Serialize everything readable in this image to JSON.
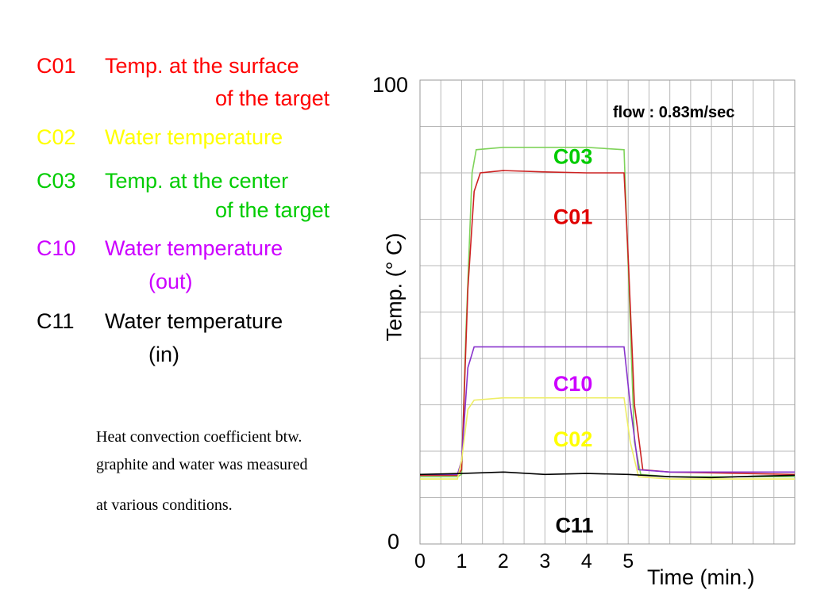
{
  "legend": [
    {
      "code": "C01",
      "desc": "Temp. at the surface",
      "cont": "of the target",
      "color": "#ff0000"
    },
    {
      "code": "C02",
      "desc": "Water temperature",
      "cont": "",
      "color": "#ffff00"
    },
    {
      "code": "C03",
      "desc": "Temp. at the center",
      "cont": "of the target",
      "color": "#00cc00"
    },
    {
      "code": "C10",
      "desc": "Water temperature",
      "cont": "(out)",
      "color": "#cc00ff"
    },
    {
      "code": "C11",
      "desc": "Water temperature",
      "cont": "(in)",
      "color": "#000000"
    }
  ],
  "note": {
    "line1": "Heat convection coefficient btw.",
    "line2": "graphite and water was measured",
    "line3": "at various conditions."
  },
  "chart_data": {
    "type": "line",
    "title": "",
    "annotation": "flow : 0.83m/sec",
    "xlabel": "Time (min.)",
    "ylabel": "Temp. (° C)",
    "x_ticks": [
      "0",
      "1",
      "2",
      "3",
      "4",
      "5"
    ],
    "y_ticks": [
      "0",
      "100"
    ],
    "xlim": [
      0,
      9
    ],
    "ylim": [
      0,
      100
    ],
    "grid": true,
    "series": [
      {
        "name": "C03",
        "color": "#7fd35a",
        "label_color": "#00cc00",
        "points": [
          [
            0,
            14.5
          ],
          [
            0.9,
            14.5
          ],
          [
            1.0,
            15
          ],
          [
            1.1,
            45
          ],
          [
            1.25,
            80
          ],
          [
            1.35,
            85
          ],
          [
            2,
            85.5
          ],
          [
            3,
            85.5
          ],
          [
            4,
            85.5
          ],
          [
            4.9,
            85
          ],
          [
            5.0,
            60
          ],
          [
            5.15,
            22
          ],
          [
            5.3,
            15
          ],
          [
            6,
            14.5
          ],
          [
            9,
            14.5
          ]
        ]
      },
      {
        "name": "C01",
        "color": "#cc2222",
        "label_color": "#e00000",
        "points": [
          [
            0,
            14.8
          ],
          [
            0.9,
            14.8
          ],
          [
            1.0,
            16
          ],
          [
            1.15,
            55
          ],
          [
            1.3,
            76
          ],
          [
            1.45,
            80
          ],
          [
            2,
            80.5
          ],
          [
            3,
            80.2
          ],
          [
            4,
            80
          ],
          [
            4.9,
            80
          ],
          [
            5.0,
            62
          ],
          [
            5.15,
            30
          ],
          [
            5.35,
            16
          ],
          [
            6,
            15.5
          ],
          [
            9,
            15
          ]
        ]
      },
      {
        "name": "C10",
        "color": "#8833cc",
        "label_color": "#cc00ff",
        "points": [
          [
            0,
            15
          ],
          [
            0.9,
            15
          ],
          [
            1.0,
            18
          ],
          [
            1.15,
            38
          ],
          [
            1.3,
            42.5
          ],
          [
            2,
            42.5
          ],
          [
            3,
            42.5
          ],
          [
            4,
            42.5
          ],
          [
            4.9,
            42.5
          ],
          [
            5.05,
            30
          ],
          [
            5.25,
            16
          ],
          [
            6,
            15.5
          ],
          [
            9,
            15.5
          ]
        ]
      },
      {
        "name": "C02",
        "color": "#eeee66",
        "label_color": "#ffff00",
        "points": [
          [
            0,
            14
          ],
          [
            0.9,
            14
          ],
          [
            1.0,
            18
          ],
          [
            1.15,
            29
          ],
          [
            1.3,
            31
          ],
          [
            2,
            31.5
          ],
          [
            3,
            31.5
          ],
          [
            4,
            31.5
          ],
          [
            4.9,
            31.5
          ],
          [
            5.05,
            22
          ],
          [
            5.25,
            14.5
          ],
          [
            6,
            14
          ],
          [
            9,
            14
          ]
        ]
      },
      {
        "name": "C11",
        "color": "#000000",
        "label_color": "#000000",
        "points": [
          [
            0,
            15
          ],
          [
            1,
            15.2
          ],
          [
            2,
            15.5
          ],
          [
            3,
            15
          ],
          [
            4,
            15.2
          ],
          [
            5,
            15
          ],
          [
            6,
            14.5
          ],
          [
            7,
            14.3
          ],
          [
            8,
            14.6
          ],
          [
            9,
            14.8
          ]
        ]
      }
    ]
  }
}
